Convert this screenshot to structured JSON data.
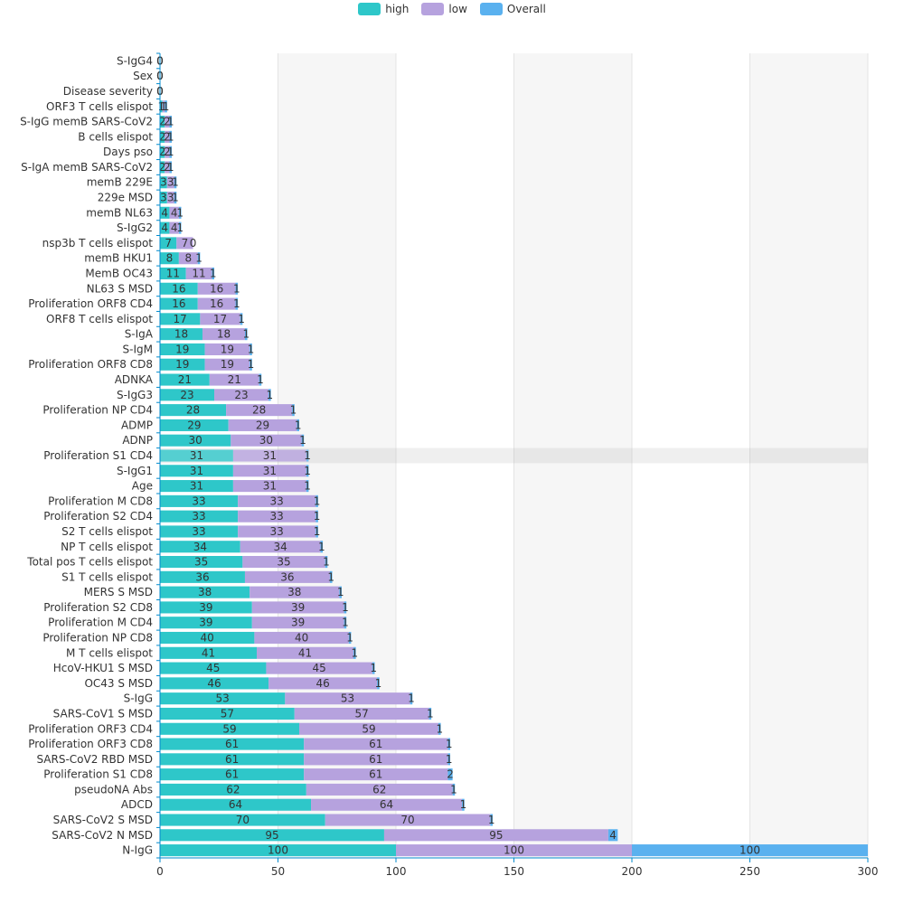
{
  "chart_data": {
    "type": "bar",
    "orientation": "horizontal",
    "stacked": true,
    "title": "",
    "xlabel": "",
    "ylabel": "",
    "xlim": [
      0,
      300
    ],
    "x_ticks": [
      0,
      50,
      100,
      150,
      200,
      250,
      300
    ],
    "grid": "vertical alternating bands",
    "legend_position": "top-center",
    "highlighted_category": "Proliferation S1 CD4",
    "colors": {
      "high": "#2ec7c9",
      "low": "#b6a2de",
      "Overall": "#5ab1ef"
    },
    "categories": [
      "S-IgG4",
      "Sex",
      "Disease severity",
      "ORF3 T cells elispot",
      "S-IgG memB SARS-CoV2",
      "B cells elispot",
      "Days pso",
      "S-IgA memB SARS-CoV2",
      "memB 229E",
      "229e MSD",
      "memB NL63",
      "S-IgG2",
      "nsp3b T cells elispot",
      "memB HKU1",
      "MemB OC43",
      "NL63 S MSD",
      "Proliferation ORF8 CD4",
      "ORF8 T cells elispot",
      "S-IgA",
      "S-IgM",
      "Proliferation ORF8 CD8",
      "ADNKA",
      "S-IgG3",
      "Proliferation NP CD4",
      "ADMP",
      "ADNP",
      "Proliferation S1 CD4",
      "S-IgG1",
      "Age",
      "Proliferation M CD8",
      "Proliferation S2 CD4",
      "S2 T cells elispot",
      "NP T cells elispot",
      "Total pos T cells elispot",
      "S1 T cells elispot",
      "MERS S MSD",
      "Proliferation S2 CD8",
      "Proliferation M CD4",
      "Proliferation NP CD8",
      "M T cells elispot",
      "HcoV-HKU1 S MSD",
      "OC43 S MSD",
      "S-IgG",
      "SARS-CoV1 S MSD",
      "Proliferation ORF3 CD4",
      "Proliferation ORF3 CD8",
      "SARS-CoV2 RBD MSD",
      "Proliferation S1 CD8",
      "pseudoNA Abs",
      "ADCD",
      "SARS-CoV2 S MSD",
      "SARS-CoV2 N MSD",
      "N-IgG"
    ],
    "series": [
      {
        "name": "high",
        "values": [
          0,
          0,
          0,
          1,
          2,
          2,
          2,
          2,
          3,
          3,
          4,
          4,
          7,
          8,
          11,
          16,
          16,
          17,
          18,
          19,
          19,
          21,
          23,
          28,
          29,
          30,
          31,
          31,
          31,
          33,
          33,
          33,
          34,
          35,
          36,
          38,
          39,
          39,
          40,
          41,
          45,
          46,
          53,
          57,
          59,
          61,
          61,
          61,
          62,
          64,
          70,
          95,
          100
        ]
      },
      {
        "name": "low",
        "values": [
          0,
          0,
          0,
          1,
          2,
          2,
          2,
          2,
          3,
          3,
          4,
          4,
          7,
          8,
          11,
          16,
          16,
          17,
          18,
          19,
          19,
          21,
          23,
          28,
          29,
          30,
          31,
          31,
          31,
          33,
          33,
          33,
          34,
          35,
          36,
          38,
          39,
          39,
          40,
          41,
          45,
          46,
          53,
          57,
          59,
          61,
          61,
          61,
          62,
          64,
          70,
          95,
          100
        ]
      },
      {
        "name": "Overall",
        "values": [
          0,
          0,
          0,
          1,
          1,
          1,
          1,
          1,
          1,
          1,
          1,
          1,
          0,
          1,
          1,
          1,
          1,
          1,
          1,
          1,
          1,
          1,
          1,
          1,
          1,
          1,
          1,
          1,
          1,
          1,
          1,
          1,
          1,
          1,
          1,
          1,
          1,
          1,
          1,
          1,
          1,
          1,
          1,
          1,
          1,
          1,
          1,
          2,
          1,
          1,
          1,
          4,
          100
        ]
      }
    ]
  }
}
